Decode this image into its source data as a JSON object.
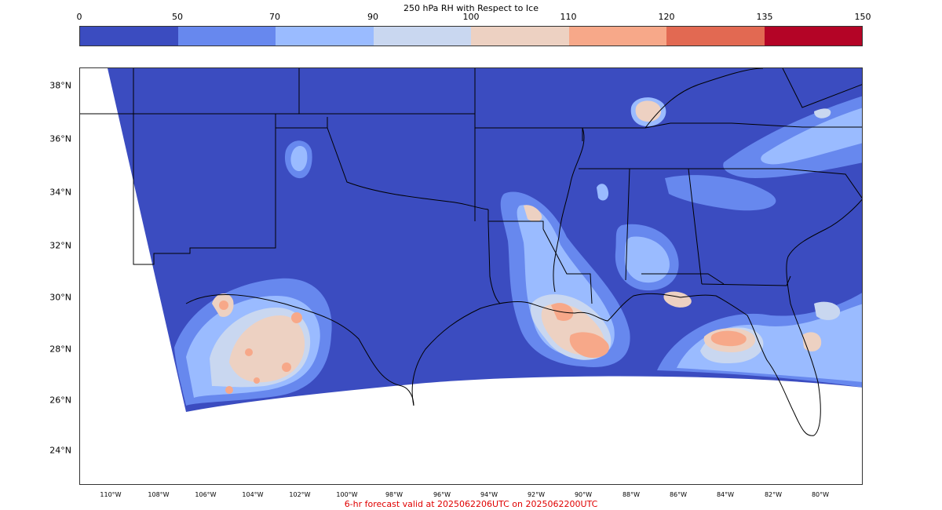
{
  "title": "250 hPa RH with Respect to Ice",
  "colorbar": {
    "ticks": [
      "0",
      "50",
      "70",
      "90",
      "100",
      "110",
      "120",
      "135",
      "150"
    ],
    "colors": [
      "#3b4cc0",
      "#6788ee",
      "#9abbff",
      "#c9d7f0",
      "#edd1c2",
      "#f7a889",
      "#e26952",
      "#b40426"
    ]
  },
  "map": {
    "lat_labels": [
      "38°N",
      "36°N",
      "34°N",
      "32°N",
      "30°N",
      "28°N",
      "26°N",
      "24°N"
    ],
    "lon_labels": [
      "110°W",
      "108°W",
      "106°W",
      "104°W",
      "102°W",
      "100°W",
      "98°W",
      "96°W",
      "94°W",
      "92°W",
      "90°W",
      "88°W",
      "86°W",
      "84°W",
      "82°W",
      "80°W"
    ],
    "land_boundary_color": "#000000",
    "no_data_color": "#ffffff"
  },
  "caption": "6-hr forecast valid at 2025062206UTC on 2025062200UTC"
}
